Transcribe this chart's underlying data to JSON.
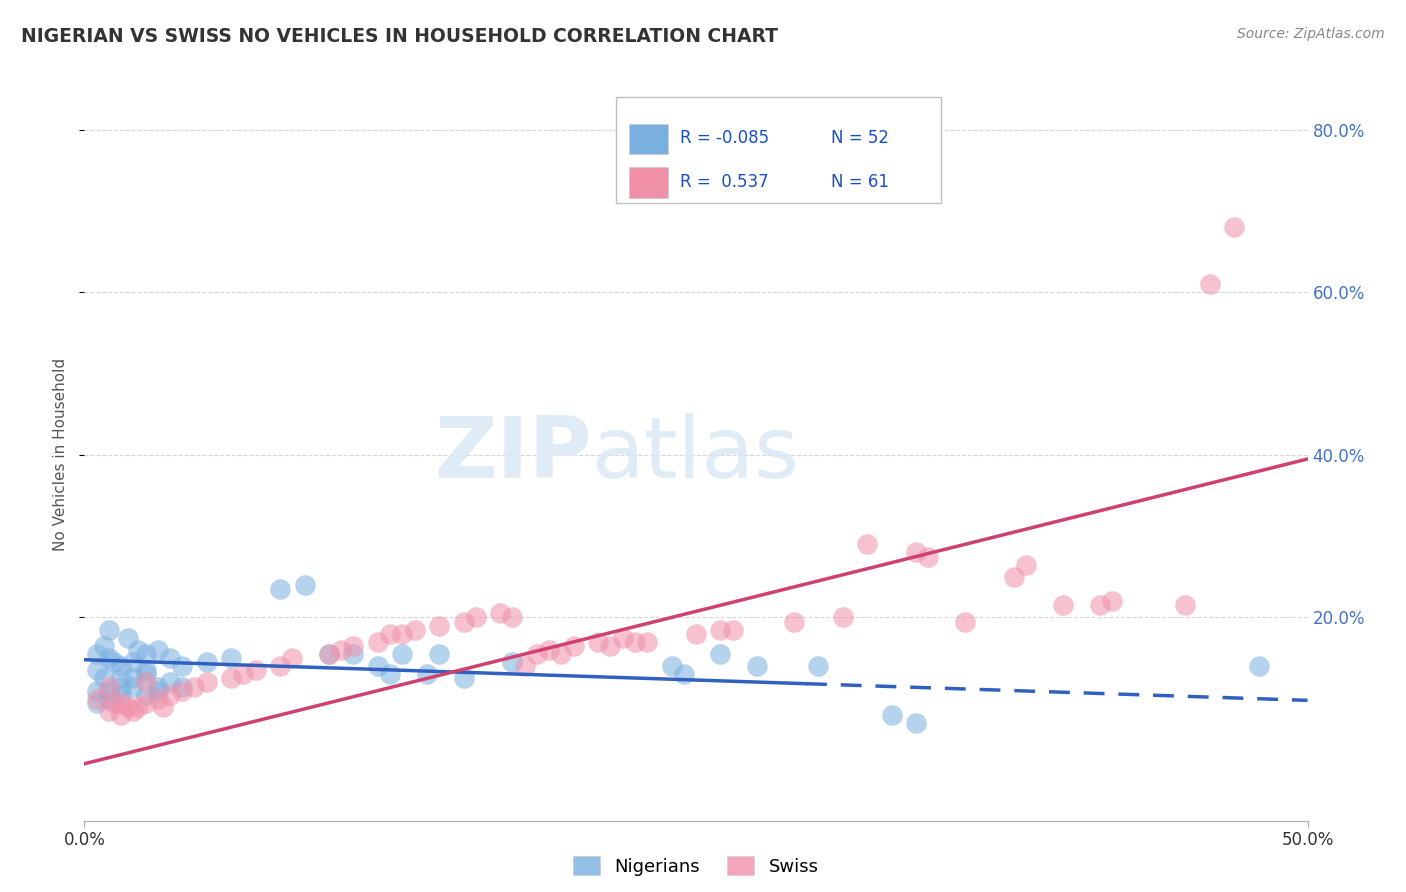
{
  "title": "NIGERIAN VS SWISS NO VEHICLES IN HOUSEHOLD CORRELATION CHART",
  "source": "Source: ZipAtlas.com",
  "ylabel": "No Vehicles in Household",
  "legend_entries": [
    {
      "label_r": "R = -0.085",
      "label_n": "N = 52",
      "color": "#a8c8f0"
    },
    {
      "label_r": "R =  0.537",
      "label_n": "N = 61",
      "color": "#f4b0c0"
    }
  ],
  "legend_bottom": [
    "Nigerians",
    "Swiss"
  ],
  "nigerian_color": "#7ab0e0",
  "swiss_color": "#f090a8",
  "nigerian_line_color": "#3060c0",
  "swiss_line_color": "#d04070",
  "watermark_zip": "ZIP",
  "watermark_atlas": "atlas",
  "bg_color": "#ffffff",
  "grid_color": "#cccccc",
  "xlim": [
    0.0,
    0.5
  ],
  "ylim": [
    -0.05,
    0.85
  ],
  "nigerian_scatter": [
    [
      0.005,
      0.155
    ],
    [
      0.01,
      0.185
    ],
    [
      0.015,
      0.125
    ],
    [
      0.005,
      0.135
    ],
    [
      0.008,
      0.165
    ],
    [
      0.012,
      0.145
    ],
    [
      0.018,
      0.175
    ],
    [
      0.022,
      0.16
    ],
    [
      0.025,
      0.155
    ],
    [
      0.01,
      0.15
    ],
    [
      0.015,
      0.14
    ],
    [
      0.02,
      0.145
    ],
    [
      0.025,
      0.135
    ],
    [
      0.008,
      0.125
    ],
    [
      0.03,
      0.16
    ],
    [
      0.035,
      0.15
    ],
    [
      0.015,
      0.115
    ],
    [
      0.02,
      0.125
    ],
    [
      0.025,
      0.13
    ],
    [
      0.03,
      0.115
    ],
    [
      0.01,
      0.11
    ],
    [
      0.04,
      0.14
    ],
    [
      0.005,
      0.11
    ],
    [
      0.015,
      0.105
    ],
    [
      0.02,
      0.115
    ],
    [
      0.03,
      0.11
    ],
    [
      0.035,
      0.12
    ],
    [
      0.01,
      0.1
    ],
    [
      0.025,
      0.105
    ],
    [
      0.005,
      0.095
    ],
    [
      0.04,
      0.115
    ],
    [
      0.05,
      0.145
    ],
    [
      0.06,
      0.15
    ],
    [
      0.08,
      0.235
    ],
    [
      0.09,
      0.24
    ],
    [
      0.1,
      0.155
    ],
    [
      0.11,
      0.155
    ],
    [
      0.12,
      0.14
    ],
    [
      0.125,
      0.13
    ],
    [
      0.13,
      0.155
    ],
    [
      0.14,
      0.13
    ],
    [
      0.145,
      0.155
    ],
    [
      0.155,
      0.125
    ],
    [
      0.175,
      0.145
    ],
    [
      0.24,
      0.14
    ],
    [
      0.245,
      0.13
    ],
    [
      0.26,
      0.155
    ],
    [
      0.275,
      0.14
    ],
    [
      0.3,
      0.14
    ],
    [
      0.33,
      0.08
    ],
    [
      0.34,
      0.07
    ],
    [
      0.48,
      0.14
    ]
  ],
  "swiss_scatter": [
    [
      0.005,
      0.1
    ],
    [
      0.01,
      0.085
    ],
    [
      0.012,
      0.095
    ],
    [
      0.015,
      0.08
    ],
    [
      0.015,
      0.095
    ],
    [
      0.018,
      0.09
    ],
    [
      0.02,
      0.085
    ],
    [
      0.022,
      0.09
    ],
    [
      0.025,
      0.095
    ],
    [
      0.03,
      0.1
    ],
    [
      0.032,
      0.09
    ],
    [
      0.035,
      0.105
    ],
    [
      0.01,
      0.115
    ],
    [
      0.025,
      0.12
    ],
    [
      0.04,
      0.11
    ],
    [
      0.045,
      0.115
    ],
    [
      0.05,
      0.12
    ],
    [
      0.06,
      0.125
    ],
    [
      0.065,
      0.13
    ],
    [
      0.07,
      0.135
    ],
    [
      0.08,
      0.14
    ],
    [
      0.085,
      0.15
    ],
    [
      0.1,
      0.155
    ],
    [
      0.105,
      0.16
    ],
    [
      0.11,
      0.165
    ],
    [
      0.12,
      0.17
    ],
    [
      0.125,
      0.18
    ],
    [
      0.13,
      0.18
    ],
    [
      0.135,
      0.185
    ],
    [
      0.145,
      0.19
    ],
    [
      0.155,
      0.195
    ],
    [
      0.16,
      0.2
    ],
    [
      0.17,
      0.205
    ],
    [
      0.175,
      0.2
    ],
    [
      0.18,
      0.14
    ],
    [
      0.185,
      0.155
    ],
    [
      0.19,
      0.16
    ],
    [
      0.195,
      0.155
    ],
    [
      0.2,
      0.165
    ],
    [
      0.21,
      0.17
    ],
    [
      0.215,
      0.165
    ],
    [
      0.22,
      0.175
    ],
    [
      0.225,
      0.17
    ],
    [
      0.23,
      0.17
    ],
    [
      0.25,
      0.18
    ],
    [
      0.26,
      0.185
    ],
    [
      0.265,
      0.185
    ],
    [
      0.29,
      0.195
    ],
    [
      0.31,
      0.2
    ],
    [
      0.32,
      0.29
    ],
    [
      0.34,
      0.28
    ],
    [
      0.345,
      0.275
    ],
    [
      0.36,
      0.195
    ],
    [
      0.38,
      0.25
    ],
    [
      0.385,
      0.265
    ],
    [
      0.4,
      0.215
    ],
    [
      0.415,
      0.215
    ],
    [
      0.42,
      0.22
    ],
    [
      0.45,
      0.215
    ],
    [
      0.46,
      0.61
    ],
    [
      0.47,
      0.68
    ]
  ],
  "nigerian_line": {
    "x0": 0.0,
    "y0": 0.148,
    "x1": 0.5,
    "y1": 0.098
  },
  "swiss_line": {
    "x0": 0.0,
    "y0": 0.02,
    "x1": 0.5,
    "y1": 0.395
  },
  "nigerian_line_solid_end": 0.295,
  "yticks": [
    0.2,
    0.4,
    0.6,
    0.8
  ],
  "ytick_labels": [
    "20.0%",
    "40.0%",
    "60.0%",
    "80.0%"
  ],
  "xticks": [
    0.0,
    0.5
  ],
  "xtick_labels": [
    "0.0%",
    "50.0%"
  ]
}
